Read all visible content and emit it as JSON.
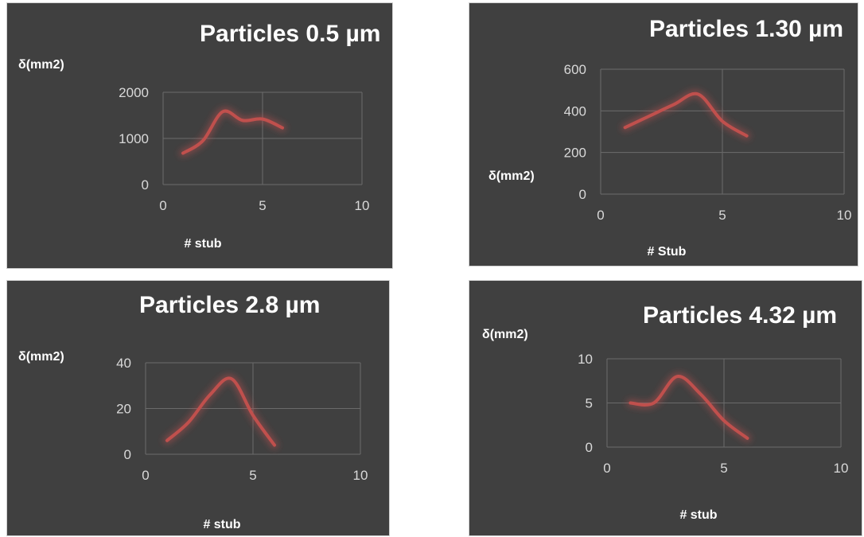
{
  "chart_data": [
    {
      "type": "line",
      "title": "Particles 0.5  µm",
      "xlabel": "# stub",
      "ylabel": "δ(mm2)",
      "x": [
        1,
        2,
        3,
        4,
        5,
        6
      ],
      "series": [
        {
          "values": [
            680,
            950,
            1580,
            1390,
            1420,
            1230
          ]
        }
      ],
      "xlim": [
        0,
        10
      ],
      "ylim": [
        0,
        2000
      ],
      "xticks": [
        "0",
        "5",
        "10"
      ],
      "yticks": [
        "0",
        "1000",
        "2000"
      ],
      "grid": true,
      "color": "#c0504d"
    },
    {
      "type": "line",
      "title": "Particles 1.30 µm",
      "xlabel": "# Stub",
      "ylabel": "δ(mm2)",
      "x": [
        1,
        2,
        3,
        4,
        5,
        6
      ],
      "series": [
        {
          "values": [
            320,
            375,
            430,
            480,
            350,
            280
          ]
        }
      ],
      "xlim": [
        0,
        10
      ],
      "ylim": [
        0,
        600
      ],
      "xticks": [
        "0",
        "5",
        "10"
      ],
      "yticks": [
        "0",
        "200",
        "400",
        "600"
      ],
      "grid": true,
      "color": "#c0504d"
    },
    {
      "type": "line",
      "title": "Particles 2.8 µm",
      "xlabel": "# stub",
      "ylabel": "δ(mm2)",
      "x": [
        1,
        2,
        3,
        4,
        5,
        6
      ],
      "series": [
        {
          "values": [
            6,
            14,
            26,
            33,
            17,
            4
          ]
        }
      ],
      "xlim": [
        0,
        10
      ],
      "ylim": [
        0,
        40
      ],
      "xticks": [
        "0",
        "5",
        "10"
      ],
      "yticks": [
        "0",
        "20",
        "40"
      ],
      "grid": true,
      "color": "#c0504d"
    },
    {
      "type": "line",
      "title": "Particles 4.32  µm",
      "xlabel": "# stub",
      "ylabel": "δ(mm2)",
      "x": [
        1,
        2,
        3,
        4,
        5,
        6
      ],
      "series": [
        {
          "values": [
            5,
            5,
            8,
            6,
            3,
            1
          ]
        }
      ],
      "xlim": [
        0,
        10
      ],
      "ylim": [
        0,
        10
      ],
      "xticks": [
        "0",
        "5",
        "10"
      ],
      "yticks": [
        "0",
        "5",
        "10"
      ],
      "grid": true,
      "color": "#c0504d"
    }
  ]
}
